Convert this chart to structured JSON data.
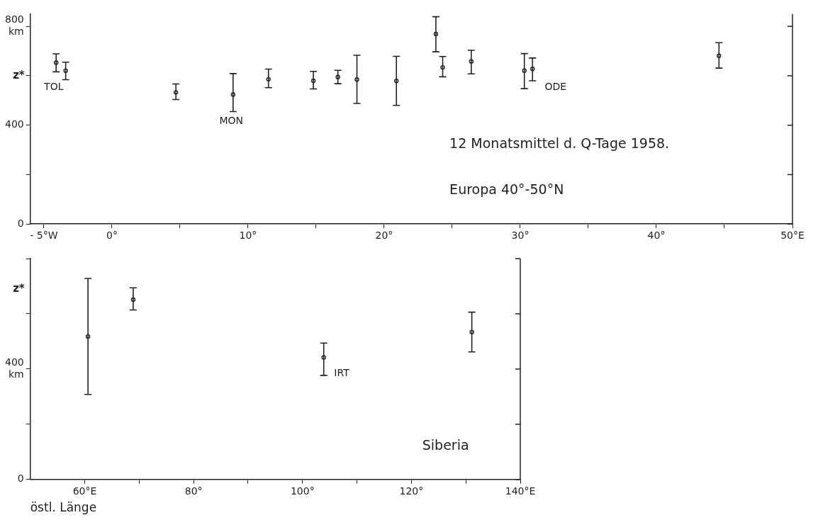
{
  "chart_data": [
    {
      "type": "scatter",
      "color": "#222222",
      "marker": "circle",
      "ylabel": "z*",
      "x": [
        -4.1,
        -3.4,
        4.7,
        8.9,
        11.5,
        14.8,
        16.6,
        18.0,
        20.9,
        23.8,
        24.3,
        26.4,
        30.3,
        30.9,
        44.6
      ],
      "values": [
        653,
        621,
        533,
        524,
        586,
        580,
        595,
        585,
        579,
        769,
        634,
        658,
        621,
        628,
        681
      ],
      "errors": [
        [
          616,
          689
        ],
        [
          584,
          655
        ],
        [
          504,
          567
        ],
        [
          455,
          609
        ],
        [
          552,
          627
        ],
        [
          547,
          618
        ],
        [
          568,
          622
        ],
        [
          488,
          683
        ],
        [
          480,
          679
        ],
        [
          697,
          839
        ],
        [
          596,
          678
        ],
        [
          608,
          703
        ],
        [
          548,
          690
        ],
        [
          580,
          672
        ],
        [
          631,
          734
        ]
      ],
      "xlim": [
        -6,
        50
      ],
      "xticks": [
        {
          "value": -5,
          "label": "- 5°W"
        },
        {
          "value": 0,
          "label": "0°"
        },
        {
          "value": 5,
          "label": null
        },
        {
          "value": 10,
          "label": "10°"
        },
        {
          "value": 15,
          "label": null
        },
        {
          "value": 20,
          "label": "20°"
        },
        {
          "value": 25,
          "label": null
        },
        {
          "value": 30,
          "label": "30°"
        },
        {
          "value": 35,
          "label": null
        },
        {
          "value": 40,
          "label": "40°"
        },
        {
          "value": 45,
          "label": null
        },
        {
          "value": 50,
          "label": "50°E"
        }
      ],
      "ylim": [
        0,
        850
      ],
      "yticks": [
        {
          "value": 0,
          "label": "0"
        },
        {
          "value": 200,
          "label": null
        },
        400,
        {
          "value": 600,
          "label": null
        },
        {
          "value": 800,
          "label": "800\nkm"
        }
      ],
      "annotations": [
        "TOL",
        "MON",
        "ODE",
        "12 Monatsmittel d. Q-Tage 1958.",
        "Europa 40°-50°N"
      ]
    },
    {
      "type": "scatter",
      "color": "#222222",
      "marker": "circle",
      "ylabel": "z*",
      "xlabel": "östl. Länge",
      "x": [
        60.6,
        68.9,
        103.9,
        131.1
      ],
      "values": [
        518,
        651,
        442,
        534
      ],
      "errors": [
        [
          308,
          728
        ],
        [
          614,
          694
        ],
        [
          377,
          494
        ],
        [
          462,
          606
        ]
      ],
      "xlim": [
        50,
        140
      ],
      "xticks": [
        {
          "value": 60,
          "label": "60°E"
        },
        {
          "value": 70,
          "label": null
        },
        {
          "value": 80,
          "label": "80°"
        },
        {
          "value": 90,
          "label": null
        },
        {
          "value": 100,
          "label": "100°"
        },
        {
          "value": 110,
          "label": null
        },
        {
          "value": 120,
          "label": "120°"
        },
        {
          "value": 130,
          "label": null
        },
        {
          "value": 140,
          "label": "140°E"
        }
      ],
      "ylim": [
        0,
        800
      ],
      "yticks": [
        {
          "value": 0,
          "label": "0"
        },
        {
          "value": 200,
          "label": null
        },
        {
          "value": 400,
          "label": "400\nkm"
        },
        {
          "value": 600,
          "label": null
        },
        {
          "value": 800,
          "label": null
        }
      ],
      "annotations": [
        "IRT",
        "Siberia"
      ]
    }
  ]
}
